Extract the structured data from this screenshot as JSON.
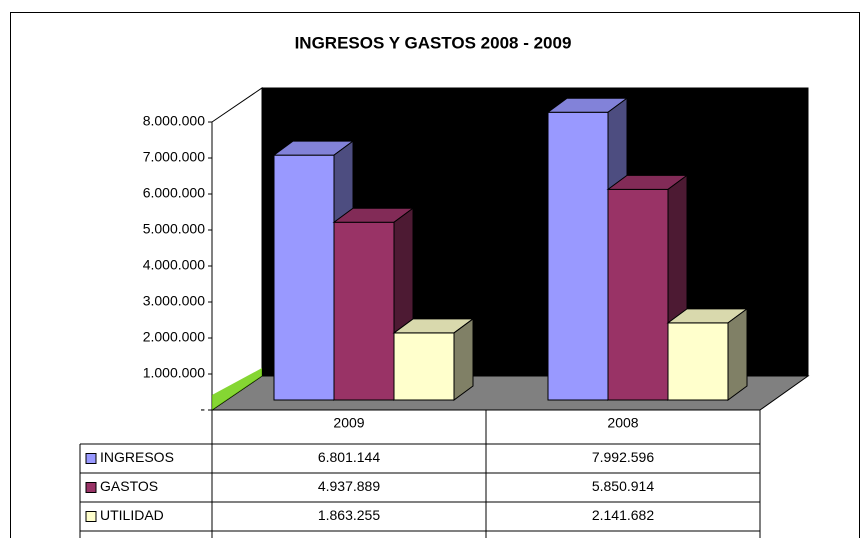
{
  "chart_data": {
    "type": "bar3d",
    "title": "INGRESOS Y GASTOS  2008 - 2009",
    "categories": [
      "2009",
      "2008"
    ],
    "series": [
      {
        "name": "INGRESOS",
        "color": "#9999ff",
        "values": [
          6801144,
          7992596
        ],
        "value_labels": [
          "6.801.144",
          "7.992.596"
        ]
      },
      {
        "name": "GASTOS",
        "color": "#993366",
        "values": [
          4937889,
          5850914
        ],
        "value_labels": [
          "4.937.889",
          "5.850.914"
        ]
      },
      {
        "name": "UTILIDAD",
        "color": "#ffffcc",
        "values": [
          1863255,
          2141682
        ],
        "value_labels": [
          "1.863.255",
          "2.141.682"
        ]
      }
    ],
    "ylim": [
      0,
      8000000
    ],
    "yticks": [
      {
        "value": 0,
        "label": "-"
      },
      {
        "value": 1000000,
        "label": "1.000.000"
      },
      {
        "value": 2000000,
        "label": "2.000.000"
      },
      {
        "value": 3000000,
        "label": "3.000.000"
      },
      {
        "value": 4000000,
        "label": "4.000.000"
      },
      {
        "value": 5000000,
        "label": "5.000.000"
      },
      {
        "value": 6000000,
        "label": "6.000.000"
      },
      {
        "value": 7000000,
        "label": "7.000.000"
      },
      {
        "value": 8000000,
        "label": "8.000.000"
      }
    ],
    "grid": false
  }
}
